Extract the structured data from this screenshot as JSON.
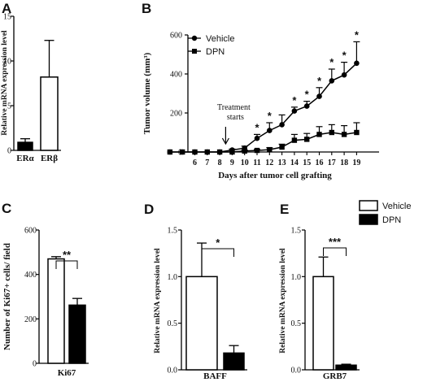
{
  "legend": {
    "items": [
      {
        "label": "Vehicle",
        "fill": "#ffffff"
      },
      {
        "label": "DPN",
        "fill": "#000000"
      }
    ],
    "placement": "top-right"
  },
  "chart_data": [
    {
      "panel": "A",
      "type": "bar",
      "ylabel": "Relative mRNA expression level",
      "ylim": [
        0,
        15
      ],
      "yticks": [
        "0",
        "5",
        "10",
        "15"
      ],
      "categories": [
        "ERα",
        "ERβ"
      ],
      "values": [
        0.9,
        8.2
      ],
      "errors": [
        0.4,
        4.1
      ],
      "fills": [
        "#000000",
        "#ffffff"
      ]
    },
    {
      "panel": "B",
      "type": "line",
      "ylabel": "Tumor volume (mm³)",
      "xlabel": "Days after tumor cell grafting",
      "ylim": [
        0,
        600
      ],
      "yticks": [
        "0",
        "200",
        "400",
        "600"
      ],
      "x": [
        4,
        5,
        6,
        7,
        8,
        9,
        10,
        11,
        12,
        13,
        14,
        15,
        16,
        17,
        18,
        19
      ],
      "xticks": [
        "6",
        "7",
        "8",
        "9",
        "10",
        "11",
        "12",
        "13",
        "14",
        "15",
        "16",
        "17",
        "18",
        "19"
      ],
      "series": [
        {
          "name": "Vehicle",
          "marker": "circle",
          "values": [
            0,
            0,
            0,
            0,
            0,
            10,
            20,
            70,
            110,
            140,
            210,
            235,
            285,
            365,
            395,
            455
          ],
          "errors": [
            0,
            0,
            0,
            0,
            0,
            5,
            10,
            20,
            40,
            50,
            20,
            25,
            45,
            60,
            65,
            110
          ]
        },
        {
          "name": "DPN",
          "marker": "square",
          "values": [
            0,
            0,
            0,
            0,
            0,
            0,
            5,
            8,
            12,
            25,
            60,
            65,
            90,
            100,
            90,
            100
          ],
          "errors": [
            0,
            0,
            0,
            0,
            0,
            0,
            5,
            5,
            10,
            15,
            30,
            30,
            40,
            40,
            45,
            50
          ]
        }
      ],
      "significance": [
        {
          "x": 11,
          "label": "*"
        },
        {
          "x": 12,
          "label": "*"
        },
        {
          "x": 14,
          "label": "*"
        },
        {
          "x": 15,
          "label": "*"
        },
        {
          "x": 16,
          "label": "*"
        },
        {
          "x": 17,
          "label": "*"
        },
        {
          "x": 18,
          "label": "*"
        },
        {
          "x": 19,
          "label": "*"
        }
      ],
      "annotation": {
        "text_line1": "Treatment",
        "text_line2": "starts",
        "x": 9
      }
    },
    {
      "panel": "C",
      "type": "bar",
      "ylabel": "Number of Ki67+ cells/ field",
      "xlabel": "Ki67",
      "ylim": [
        0,
        600
      ],
      "yticks": [
        "0",
        "200",
        "400",
        "600"
      ],
      "categories": [
        "Vehicle",
        "DPN"
      ],
      "values": [
        470,
        262
      ],
      "errors": [
        10,
        30
      ],
      "fills": [
        "#ffffff",
        "#000000"
      ],
      "significance": "**"
    },
    {
      "panel": "D",
      "type": "bar",
      "ylabel": "Relative mRNA expression level",
      "xlabel": "BAFF",
      "ylim": [
        0,
        1.5
      ],
      "yticks": [
        "0.0",
        "0.5",
        "1.0",
        "1.5"
      ],
      "categories": [
        "Vehicle",
        "DPN"
      ],
      "values": [
        1.0,
        0.18
      ],
      "errors": [
        0.36,
        0.08
      ],
      "fills": [
        "#ffffff",
        "#000000"
      ],
      "significance": "*"
    },
    {
      "panel": "E",
      "type": "bar",
      "ylabel": "Relative mRNA expression level",
      "xlabel": "GRB7",
      "ylim": [
        0,
        1.5
      ],
      "yticks": [
        "0.0",
        "0.5",
        "1.0",
        "1.5"
      ],
      "categories": [
        "Vehicle",
        "DPN"
      ],
      "values": [
        1.0,
        0.05
      ],
      "errors": [
        0.21,
        0.01
      ],
      "fills": [
        "#ffffff",
        "#000000"
      ],
      "significance": "***"
    }
  ]
}
